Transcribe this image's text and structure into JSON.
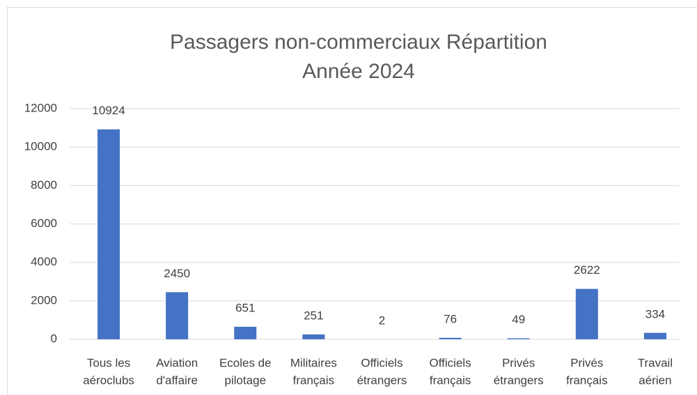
{
  "chart_data": {
    "type": "bar",
    "title": "Passagers non-commerciaux  Répartition",
    "subtitle": "Année 2024",
    "categories": [
      [
        "Tous les",
        "aéroclubs"
      ],
      [
        "Aviation",
        "d'affaire"
      ],
      [
        "Ecoles de",
        "pilotage"
      ],
      [
        "Militaires",
        "français"
      ],
      [
        "Officiels",
        "étrangers"
      ],
      [
        "Officiels",
        "français"
      ],
      [
        "Privés",
        "étrangers"
      ],
      [
        "Privés",
        "français"
      ],
      [
        "Travail",
        "aérien"
      ]
    ],
    "values": [
      10924,
      2450,
      651,
      251,
      2,
      76,
      49,
      2622,
      334
    ],
    "color": "#4472c4",
    "ylim": [
      0,
      12000
    ],
    "yticks": [
      0,
      2000,
      4000,
      6000,
      8000,
      10000,
      12000
    ],
    "grid": true
  }
}
